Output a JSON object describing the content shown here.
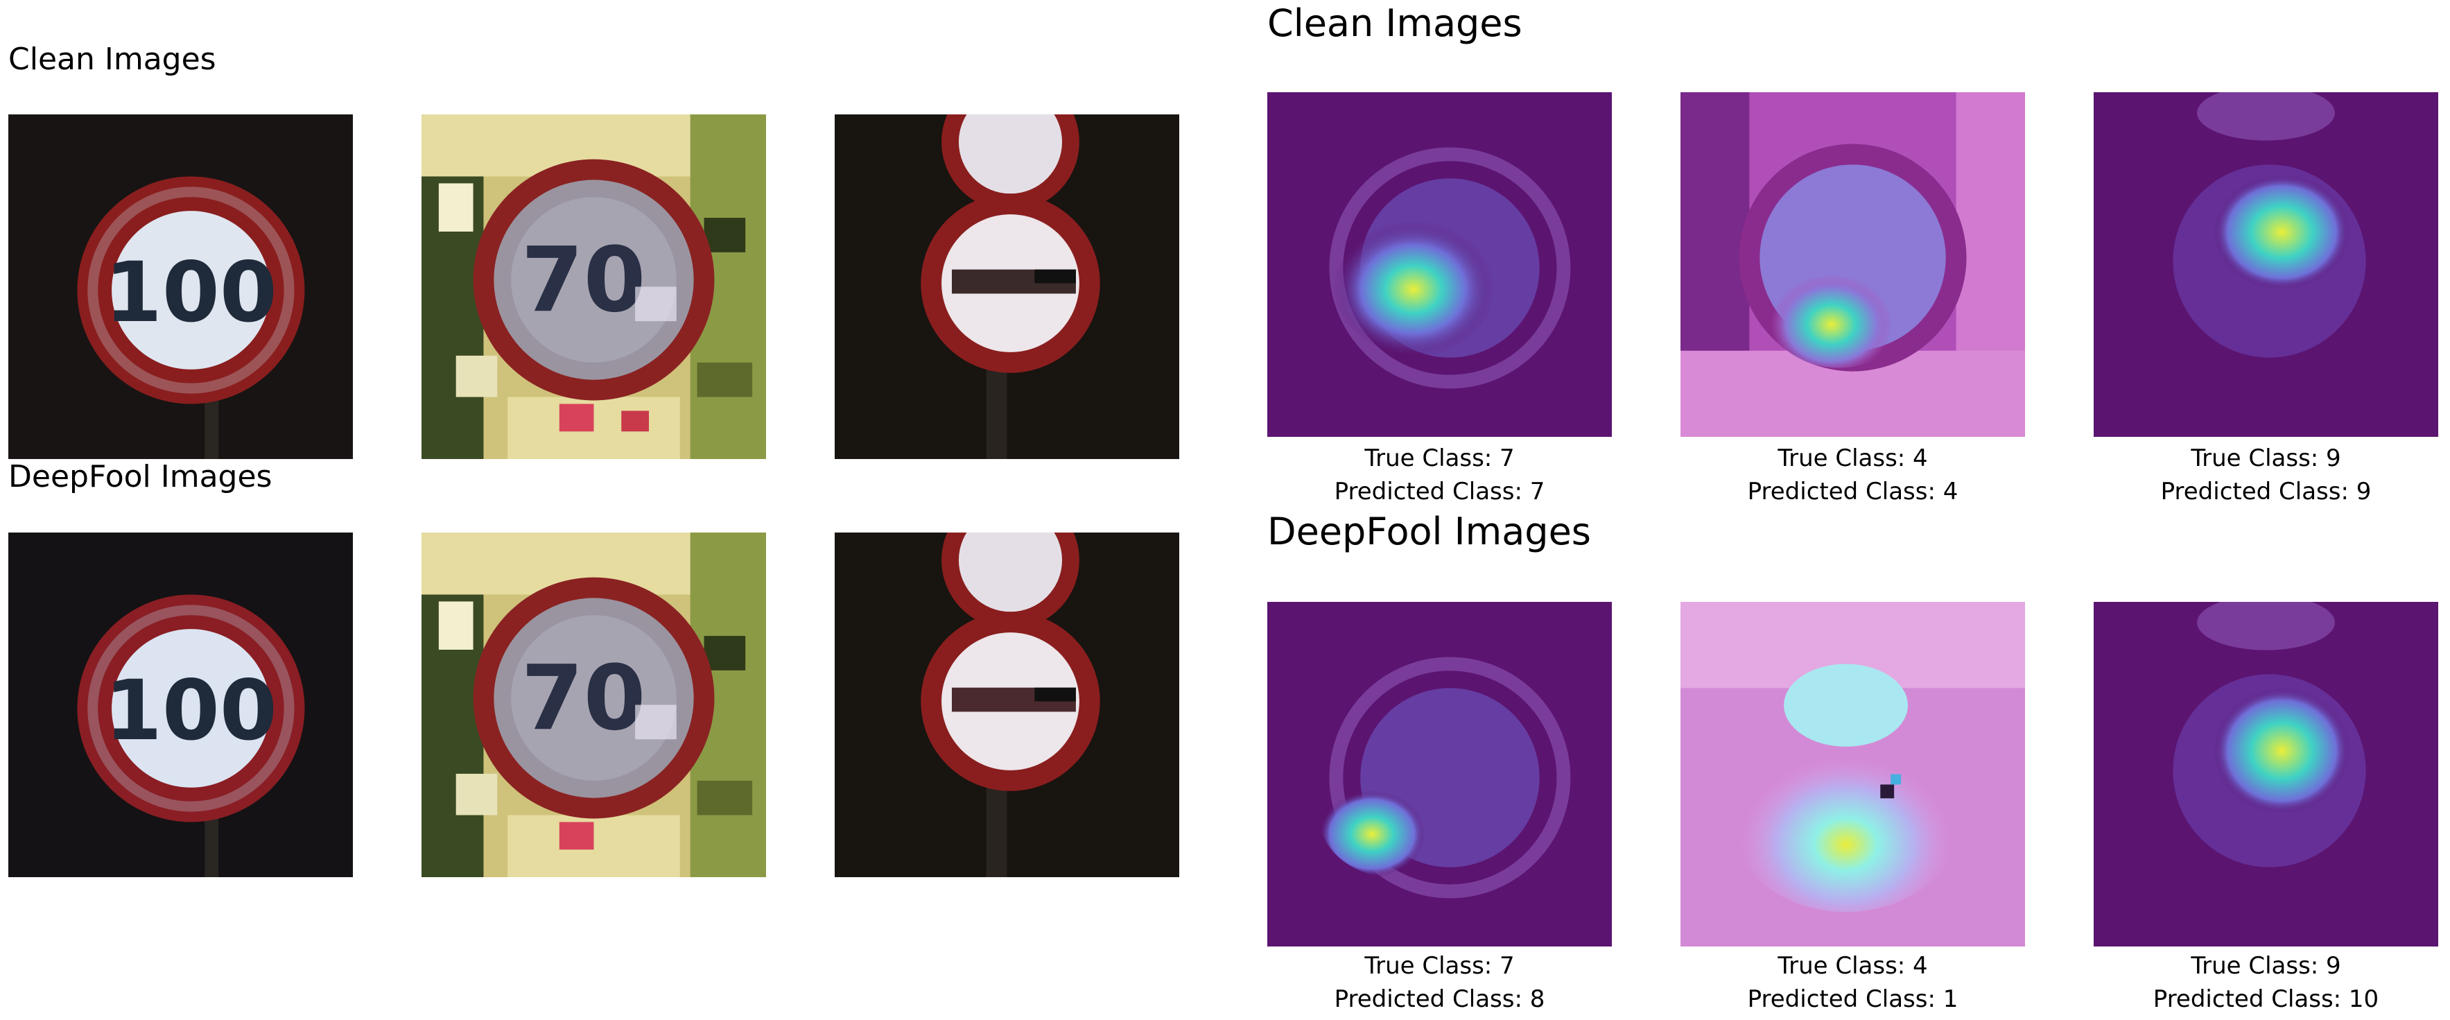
{
  "left_panel": {
    "clean_title": "Clean Images",
    "deepfool_title": "DeepFool Images",
    "clean_tiles": [
      {
        "icon": "speed-limit-100-sign",
        "sign_text": "100"
      },
      {
        "icon": "speed-limit-70-sign",
        "sign_text": "70"
      },
      {
        "icon": "no-entry-sign",
        "sign_text": ""
      }
    ],
    "deepfool_tiles": [
      {
        "icon": "speed-limit-100-sign",
        "sign_text": "100"
      },
      {
        "icon": "speed-limit-70-sign",
        "sign_text": "70"
      },
      {
        "icon": "no-entry-sign",
        "sign_text": ""
      }
    ]
  },
  "right_panel": {
    "clean_title": "Clean Images",
    "deepfool_title": "DeepFool Images",
    "clean": [
      {
        "true_label": "True Class: 7",
        "pred_label": "Predicted Class: 7"
      },
      {
        "true_label": "True Class: 4",
        "pred_label": "Predicted Class: 4"
      },
      {
        "true_label": "True Class: 9",
        "pred_label": "Predicted Class: 9"
      }
    ],
    "deepfool": [
      {
        "true_label": "True Class: 7",
        "pred_label": "Predicted Class: 8"
      },
      {
        "true_label": "True Class: 4",
        "pred_label": "Predicted Class: 1"
      },
      {
        "true_label": "True Class: 9",
        "pred_label": "Predicted Class: 10"
      }
    ]
  },
  "colors": {
    "dark_bg": "#141210",
    "sign_red": "#8a1e1e",
    "sign_white": "#dfe6f0",
    "heatmap_purple": "#5b1470",
    "heatmap_cyan": "#3fd2c4",
    "heatmap_yellow": "#e9ee3a"
  }
}
